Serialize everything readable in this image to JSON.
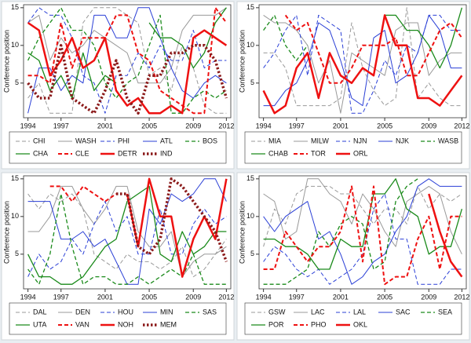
{
  "chart_data": [
    {
      "type": "line",
      "ylabel": "Conference position",
      "x": [
        1994,
        1995,
        1996,
        1997,
        1998,
        1999,
        2000,
        2001,
        2002,
        2003,
        2004,
        2005,
        2006,
        2007,
        2008,
        2009,
        2010,
        2011,
        2012
      ],
      "xlim": [
        1993.6,
        2012.4
      ],
      "xticks": [
        1994,
        1997,
        2001,
        2005,
        2009,
        2012
      ],
      "ylim": [
        0.4,
        15.4
      ],
      "yticks": [
        5,
        10,
        15
      ],
      "series": [
        {
          "name": "CHI",
          "color": "#999999",
          "dash": "dash",
          "width": 1,
          "values": [
            3,
            5,
            1,
            1,
            1,
            13,
            15,
            15,
            15,
            14,
            13,
            6,
            7,
            4,
            10,
            7,
            2,
            1,
            1
          ]
        },
        {
          "name": "WASH",
          "color": "#999999",
          "dash": "solid",
          "width": 1,
          "values": [
            13,
            14,
            8,
            11,
            9,
            10,
            12,
            11,
            10,
            9,
            5,
            5,
            5,
            7,
            12,
            14,
            14,
            14,
            15
          ]
        },
        {
          "name": "PHI",
          "color": "#2a3fd6",
          "dash": "dash",
          "width": 1,
          "values": [
            13,
            15,
            14,
            14,
            11,
            6,
            5,
            1,
            6,
            6,
            9,
            7,
            10,
            8,
            8,
            12,
            7,
            8,
            8
          ]
        },
        {
          "name": "ATL",
          "color": "#2a3fd6",
          "dash": "solid",
          "width": 1,
          "values": [
            1,
            7,
            7,
            4,
            6,
            5,
            14,
            14,
            11,
            11,
            15,
            15,
            11,
            7,
            4,
            3,
            5,
            6,
            5
          ]
        },
        {
          "name": "BOS",
          "color": "#1a8a1a",
          "dash": "dash",
          "width": 1.3,
          "values": [
            8,
            11,
            13,
            15,
            12,
            12,
            10,
            5,
            3,
            5,
            6,
            10,
            14,
            1,
            1,
            3,
            4,
            3,
            4
          ]
        },
        {
          "name": "CHA",
          "color": "#1a8a1a",
          "dash": "solid",
          "width": 1.3,
          "values": [
            9,
            8,
            4,
            6,
            3,
            9,
            4,
            6,
            5,
            null,
            null,
            13,
            11,
            11,
            10,
            7,
            9,
            13,
            15
          ]
        },
        {
          "name": "CLE",
          "color": "#ee1111",
          "dash": "dash",
          "width": 2,
          "values": [
            6,
            6,
            5,
            13,
            7,
            11,
            11,
            11,
            14,
            14,
            9,
            8,
            4,
            3,
            2,
            1,
            1,
            15,
            13
          ]
        },
        {
          "name": "DETR",
          "color": "#ee1111",
          "dash": "solid",
          "width": 2.5,
          "values": [
            13,
            12,
            6,
            8,
            11,
            7,
            8,
            11,
            4,
            2,
            3,
            1,
            1,
            2,
            1,
            11,
            12,
            11,
            10
          ]
        },
        {
          "name": "IND",
          "color": "#8b1a1a",
          "dash": "dot",
          "width": 3.5,
          "values": [
            5,
            3,
            3,
            10,
            3,
            2,
            1,
            4,
            8,
            3,
            1,
            6,
            6,
            9,
            9,
            10,
            10,
            8,
            3
          ]
        }
      ]
    },
    {
      "type": "line",
      "ylabel": "Conference position",
      "x": [
        1994,
        1995,
        1996,
        1997,
        1998,
        1999,
        2000,
        2001,
        2002,
        2003,
        2004,
        2005,
        2006,
        2007,
        2008,
        2009,
        2010,
        2011,
        2012
      ],
      "xlim": [
        1993.6,
        2012.4
      ],
      "xticks": [
        1994,
        1997,
        2001,
        2005,
        2009,
        2012
      ],
      "ylim": [
        0.4,
        15.4
      ],
      "yticks": [
        5,
        10,
        15
      ],
      "series": [
        {
          "name": "MIA",
          "color": "#999999",
          "dash": "dash",
          "width": 1,
          "values": [
            9,
            9,
            7,
            2,
            2,
            2,
            2,
            3,
            13,
            7,
            4,
            2,
            3,
            15,
            3,
            5,
            3,
            2,
            2
          ]
        },
        {
          "name": "MILW",
          "color": "#999999",
          "dash": "solid",
          "width": 1,
          "values": [
            14,
            13,
            13,
            12,
            10,
            5,
            8,
            1,
            9,
            8,
            7,
            6,
            12,
            13,
            13,
            6,
            8,
            9,
            9
          ]
        },
        {
          "name": "NJN",
          "color": "#2a3fd6",
          "dash": "dash",
          "width": 1,
          "values": [
            7,
            9,
            12,
            14,
            6,
            14,
            13,
            12,
            1,
            1,
            4,
            8,
            6,
            10,
            9,
            14,
            14,
            12,
            12
          ]
        },
        {
          "name": "NJK",
          "color": "#2a3fd6",
          "dash": "solid",
          "width": 1,
          "values": [
            2,
            2,
            4,
            5,
            8,
            13,
            12,
            8,
            3,
            2,
            11,
            12,
            5,
            6,
            9,
            14,
            12,
            7,
            7
          ]
        },
        {
          "name": "WASB",
          "color": "#1a8a1a",
          "dash": "dash",
          "width": 1.3,
          "values": [
            12,
            14,
            10,
            8,
            10,
            null,
            null,
            null,
            null,
            null,
            null,
            null,
            null,
            null,
            null,
            null,
            null,
            null,
            null
          ]
        },
        {
          "name": "CHAB",
          "color": "#1a8a1a",
          "dash": "solid",
          "width": 1.3,
          "values": [
            null,
            null,
            null,
            null,
            null,
            null,
            null,
            null,
            null,
            null,
            null,
            14,
            14,
            12,
            12,
            10,
            7,
            10,
            15
          ]
        },
        {
          "name": "TOR",
          "color": "#ee1111",
          "dash": "dash",
          "width": 2,
          "values": [
            null,
            null,
            14,
            12,
            13,
            9,
            5,
            5,
            7,
            10,
            10,
            10,
            11,
            6,
            6,
            9,
            12,
            13,
            11
          ]
        },
        {
          "name": "ORL",
          "color": "#ee1111",
          "dash": "solid",
          "width": 2.5,
          "values": [
            4,
            1,
            2,
            7,
            9,
            3,
            9,
            6,
            5,
            7,
            6,
            14,
            10,
            10,
            3,
            3,
            2,
            4,
            6
          ]
        }
      ]
    },
    {
      "type": "line",
      "ylabel": "Conference position",
      "x": [
        1994,
        1995,
        1996,
        1997,
        1998,
        1999,
        2000,
        2001,
        2002,
        2003,
        2004,
        2005,
        2006,
        2007,
        2008,
        2009,
        2010,
        2011,
        2012
      ],
      "xlim": [
        1993.6,
        2012.4
      ],
      "xticks": [
        1994,
        1997,
        2001,
        2005,
        2009,
        2012
      ],
      "ylim": [
        0.4,
        15.4
      ],
      "yticks": [
        5,
        10,
        15
      ],
      "series": [
        {
          "name": "DAL",
          "color": "#999999",
          "dash": "dash",
          "width": 1,
          "values": [
            13,
            11,
            13,
            12,
            13,
            11,
            5,
            4,
            3,
            5,
            4,
            4,
            3,
            4,
            6,
            2,
            3,
            5,
            7
          ]
        },
        {
          "name": "DEN",
          "color": "#999999",
          "dash": "solid",
          "width": 1,
          "values": [
            8,
            8,
            10,
            14,
            14,
            11,
            9,
            11,
            14,
            14,
            8,
            6,
            6,
            8,
            2,
            4,
            5,
            5,
            6
          ]
        },
        {
          "name": "HOU",
          "color": "#2a3fd6",
          "dash": "dash",
          "width": 1,
          "values": [
            2,
            5,
            3,
            4,
            7,
            5,
            9,
            12,
            8,
            10,
            5,
            5,
            11,
            5,
            5,
            9,
            11,
            9,
            10
          ]
        },
        {
          "name": "MIN",
          "color": "#2a3fd6",
          "dash": "solid",
          "width": 1,
          "values": [
            12,
            12,
            12,
            7,
            7,
            8,
            6,
            7,
            4,
            1,
            1,
            11,
            9,
            13,
            12,
            13,
            15,
            15,
            12
          ]
        },
        {
          "name": "SAS",
          "color": "#1a8a1a",
          "dash": "dash",
          "width": 1.3,
          "values": [
            3,
            1,
            5,
            13,
            6,
            1,
            2,
            2,
            1,
            1,
            2,
            1,
            2,
            3,
            2,
            5,
            1,
            1,
            1
          ]
        },
        {
          "name": "UTA",
          "color": "#1a8a1a",
          "dash": "solid",
          "width": 1.3,
          "values": [
            5,
            2,
            2,
            1,
            1,
            2,
            4,
            6,
            7,
            12,
            13,
            14,
            5,
            4,
            8,
            5,
            6,
            8,
            8
          ]
        },
        {
          "name": "VAN",
          "color": "#ee1111",
          "dash": "dash",
          "width": 2,
          "values": [
            null,
            null,
            14,
            14,
            12,
            14,
            13,
            12,
            13,
            null,
            null,
            null,
            null,
            null,
            null,
            null,
            null,
            null,
            null
          ]
        },
        {
          "name": "NOH",
          "color": "#ee1111",
          "dash": "solid",
          "width": 2.5,
          "values": [
            null,
            null,
            null,
            null,
            null,
            null,
            null,
            null,
            null,
            13,
            6,
            15,
            10,
            10,
            2,
            7,
            10,
            7,
            15
          ]
        },
        {
          "name": "MEM",
          "color": "#8b1a1a",
          "dash": "dot",
          "width": 3.5,
          "values": [
            null,
            null,
            null,
            null,
            null,
            null,
            null,
            null,
            13,
            13,
            6,
            5,
            7,
            15,
            14,
            12,
            10,
            8,
            4
          ]
        }
      ]
    },
    {
      "type": "line",
      "ylabel": "Conference position",
      "x": [
        1994,
        1995,
        1996,
        1997,
        1998,
        1999,
        2000,
        2001,
        2002,
        2003,
        2004,
        2005,
        2006,
        2007,
        2008,
        2009,
        2010,
        2011,
        2012
      ],
      "xlim": [
        1993.6,
        2012.4
      ],
      "xticks": [
        1994,
        1997,
        2001,
        2005,
        2009,
        2012
      ],
      "ylim": [
        0.4,
        15.4
      ],
      "yticks": [
        5,
        10,
        15
      ],
      "series": [
        {
          "name": "GSW",
          "color": "#999999",
          "dash": "dash",
          "width": 1,
          "values": [
            6,
            11,
            9,
            13,
            14,
            14,
            14,
            13,
            13,
            11,
            9,
            11,
            11,
            9,
            14,
            11,
            13,
            12,
            13
          ]
        },
        {
          "name": "LAC",
          "color": "#999999",
          "dash": "solid",
          "width": 1,
          "values": [
            13,
            12,
            7,
            8,
            15,
            15,
            13,
            12,
            9,
            13,
            11,
            8,
            6,
            12,
            13,
            14,
            13,
            8,
            5
          ]
        },
        {
          "name": "LAL",
          "color": "#2a3fd6",
          "dash": "dash",
          "width": 1,
          "values": [
            4,
            6,
            5,
            3,
            2,
            3,
            1,
            2,
            3,
            5,
            11,
            13,
            7,
            7,
            1,
            1,
            1,
            3,
            3
          ]
        },
        {
          "name": "SAC",
          "color": "#2a3fd6",
          "dash": "solid",
          "width": 1,
          "values": [
            10,
            8,
            10,
            11,
            12,
            7,
            8,
            5,
            1,
            2,
            4,
            5,
            8,
            10,
            14,
            15,
            14,
            14,
            14
          ]
        },
        {
          "name": "SEA",
          "color": "#1a8a1a",
          "dash": "dash",
          "width": 1.3,
          "values": [
            1,
            1,
            1,
            2,
            3,
            8,
            6,
            9,
            10,
            9,
            3,
            4,
            12,
            14,
            15,
            null,
            null,
            null,
            null
          ]
        },
        {
          "name": "POR",
          "color": "#1a8a1a",
          "dash": "solid",
          "width": 1.3,
          "values": [
            7,
            7,
            6,
            6,
            5,
            3,
            3,
            7,
            6,
            6,
            13,
            13,
            15,
            11,
            10,
            5,
            6,
            6,
            11
          ]
        },
        {
          "name": "PHO",
          "color": "#ee1111",
          "dash": "dash",
          "width": 2,
          "values": [
            3,
            3,
            8,
            6,
            4,
            6,
            6,
            8,
            14,
            4,
            14,
            1,
            2,
            2,
            7,
            10,
            3,
            10,
            10
          ]
        },
        {
          "name": "OKL",
          "color": "#ee1111",
          "dash": "solid",
          "width": 2.5,
          "values": [
            null,
            null,
            null,
            null,
            null,
            null,
            null,
            null,
            null,
            null,
            null,
            null,
            null,
            null,
            null,
            13,
            8,
            4,
            2
          ]
        }
      ]
    }
  ]
}
